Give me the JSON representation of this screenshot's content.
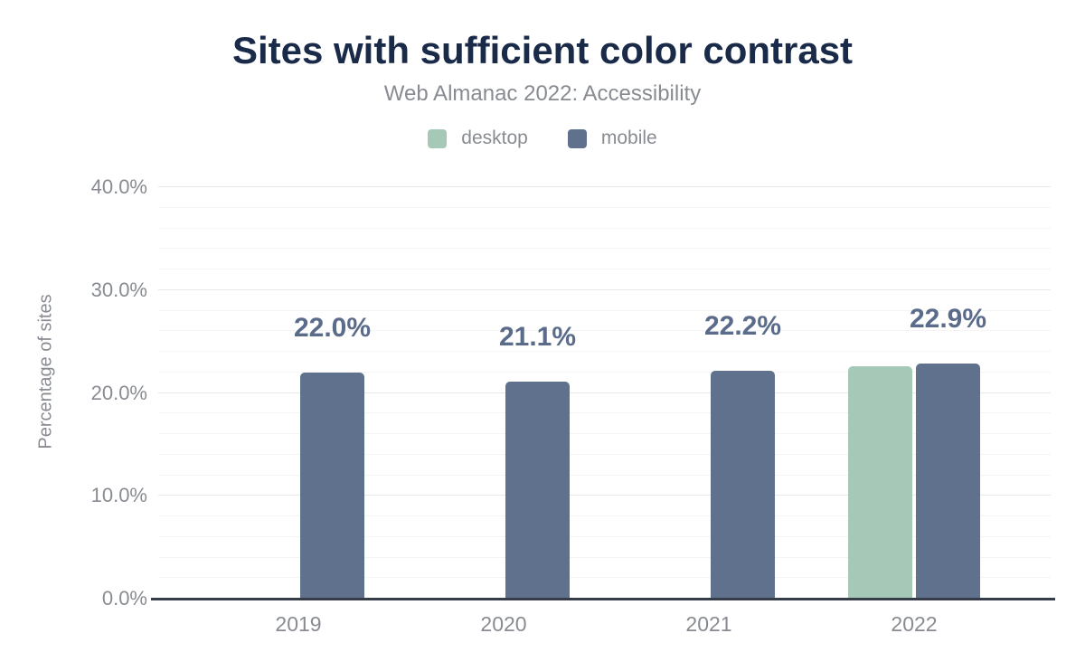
{
  "chart_data": {
    "type": "bar",
    "title": "Sites with sufficient color contrast",
    "subtitle": "Web Almanac 2022: Accessibility",
    "xlabel": "",
    "ylabel": "Percentage of sites",
    "categories": [
      "2019",
      "2020",
      "2021",
      "2022"
    ],
    "series": [
      {
        "name": "desktop",
        "color": "#a5c9b6",
        "values": [
          null,
          null,
          null,
          22.6
        ],
        "data_labels": null
      },
      {
        "name": "mobile",
        "color": "#5f718c",
        "values": [
          22.0,
          21.1,
          22.2,
          22.9
        ],
        "data_labels": [
          "22.0%",
          "21.1%",
          "22.2%",
          "22.9%"
        ]
      }
    ],
    "ylim": [
      0,
      40
    ],
    "yticks": [
      {
        "value": 40,
        "label": "40.0%"
      },
      {
        "value": 30,
        "label": "30.0%"
      },
      {
        "value": 20,
        "label": "20.0%"
      },
      {
        "value": 10,
        "label": "10.0%"
      },
      {
        "value": 0,
        "label": "0.0%"
      }
    ],
    "grid": {
      "major_step": 10,
      "minor_step": 2,
      "visible": true
    },
    "legend_position": "top"
  },
  "colors": {
    "background": "#ffffff",
    "title": "#1a2b49",
    "muted_text": "#888c92",
    "data_label": "#5b6c8b",
    "axis_line": "#363d49",
    "grid_major": "#e7e8ea",
    "grid_minor": "#f4f4f5"
  }
}
